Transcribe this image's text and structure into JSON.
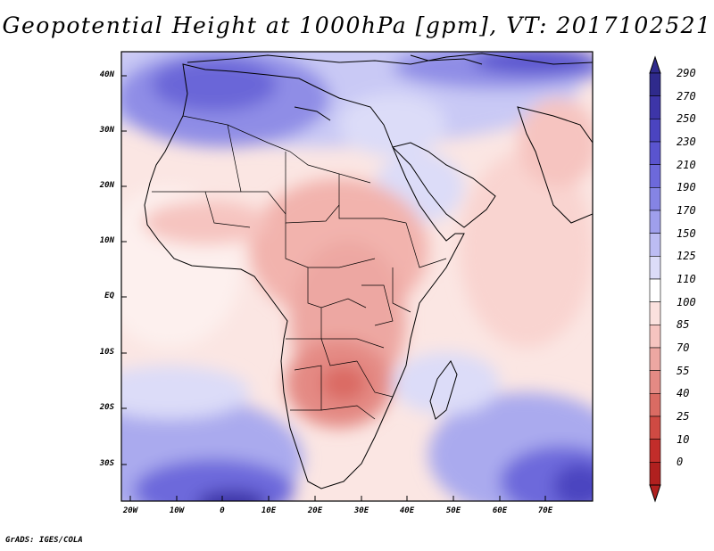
{
  "title": "Geopotential Height at 1000hPa [gpm], VT: 2017102521",
  "credit": "GrADS: IGES/COLA",
  "lat_labels": [
    "40N",
    "30N",
    "20N",
    "10N",
    "EQ",
    "10S",
    "20S",
    "30S"
  ],
  "lon_labels": [
    "20W",
    "10W",
    "0",
    "10E",
    "20E",
    "30E",
    "40E",
    "50E",
    "60E",
    "70E"
  ],
  "colorbar": {
    "labels": [
      "290",
      "270",
      "250",
      "230",
      "210",
      "190",
      "170",
      "150",
      "125",
      "110",
      "100",
      "85",
      "70",
      "55",
      "40",
      "25",
      "10",
      "0"
    ],
    "colors": [
      "#2f2a8c",
      "#3d35a8",
      "#4b44c0",
      "#5a54cf",
      "#6d69db",
      "#8584e4",
      "#9f9fec",
      "#bcbcf3",
      "#dcdcf8",
      "#ffffff",
      "#fbe1de",
      "#f6c4c0",
      "#eda7a2",
      "#e48a84",
      "#da6b63",
      "#cf4a43",
      "#c22d2a",
      "#b0201f"
    ]
  },
  "map": {
    "variable": "Geopotential Height",
    "level": "1000hPa",
    "units": "gpm",
    "valid_time": "2017102521",
    "region": "Africa / Indian Ocean"
  }
}
